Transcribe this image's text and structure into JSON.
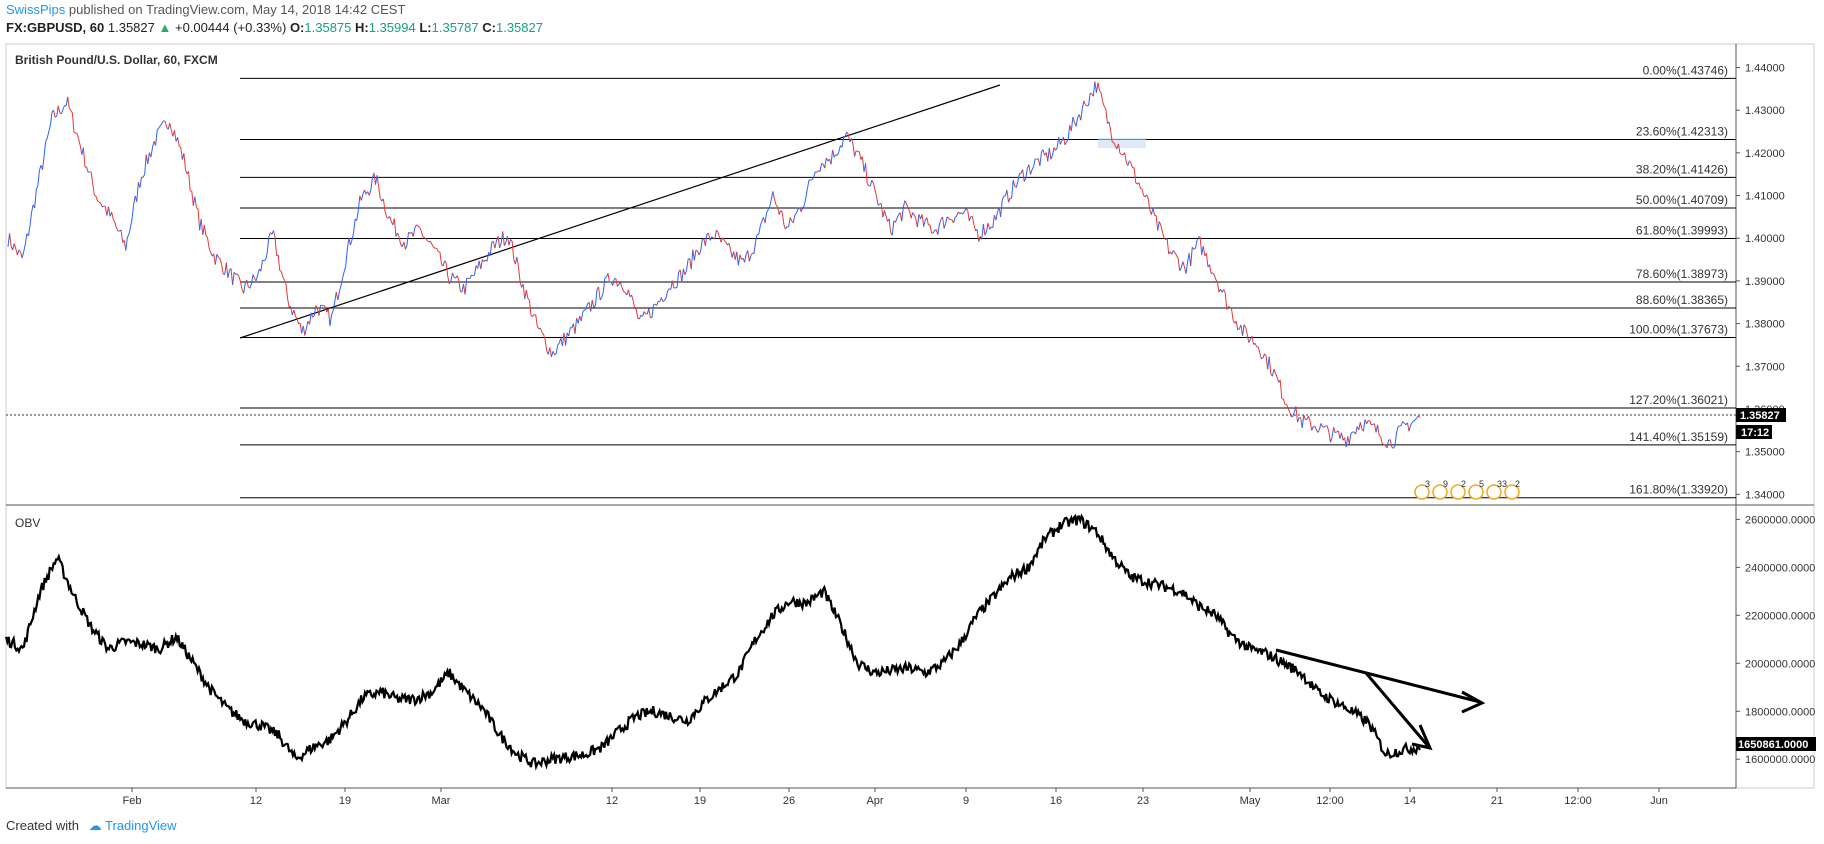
{
  "header": {
    "author": "SwissPips",
    "published_text": "published on TradingView.com, May 14, 2018 14:42 CEST",
    "symbol": "FX:GBPUSD, 60",
    "last": "1.35827",
    "change": "+0.00444 (+0.33%)",
    "o_label": "O:",
    "o_value": "1.35875",
    "h_label": "H:",
    "h_value": "1.35994",
    "l_label": "L:",
    "l_value": "1.35787",
    "c_label": "C:",
    "c_value": "1.35827"
  },
  "footer": {
    "created_with": "Created with",
    "brand": "TradingView"
  },
  "colors": {
    "up": "#2962ff",
    "down": "#e53935",
    "line": "#000000",
    "axis": "#555555",
    "price_tag": "#000000"
  },
  "chart_data": [
    {
      "type": "line",
      "title": "British Pound/U.S. Dollar, 60, FXCM",
      "ylim": [
        1.3375,
        1.4455
      ],
      "y_ticks": [
        "1.44000",
        "1.43000",
        "1.42000",
        "1.41000",
        "1.40000",
        "1.39000",
        "1.38000",
        "1.37000",
        "1.36000",
        "1.35000",
        "1.34000"
      ],
      "x_ticks": [
        "Feb",
        "12",
        "19",
        "Mar",
        "12",
        "19",
        "26",
        "Apr",
        "9",
        "16",
        "23",
        "May",
        "12:00",
        "14",
        "21",
        "12:00",
        "Jun"
      ],
      "current_price": "1.35827",
      "countdown": "17:12",
      "series": [
        {
          "values": [
            1.4,
            1.395,
            1.412,
            1.428,
            1.432,
            1.421,
            1.41,
            1.405,
            1.398,
            1.414,
            1.423,
            1.428,
            1.418,
            1.404,
            1.396,
            1.392,
            1.388,
            1.391,
            1.401,
            1.386,
            1.378,
            1.384,
            1.381,
            1.396,
            1.409,
            1.414,
            1.404,
            1.399,
            1.402,
            1.397,
            1.391,
            1.388,
            1.393,
            1.398,
            1.401,
            1.389,
            1.379,
            1.373,
            1.377,
            1.381,
            1.386,
            1.391,
            1.389,
            1.38,
            1.384,
            1.389,
            1.392,
            1.398,
            1.401,
            1.397,
            1.394,
            1.4,
            1.41,
            1.402,
            1.408,
            1.417,
            1.419,
            1.424,
            1.418,
            1.41,
            1.402,
            1.407,
            1.404,
            1.402,
            1.405,
            1.406,
            1.401,
            1.404,
            1.41,
            1.415,
            1.418,
            1.42,
            1.424,
            1.43,
            1.436,
            1.425,
            1.419,
            1.412,
            1.404,
            1.397,
            1.393,
            1.399,
            1.392,
            1.384,
            1.378,
            1.375,
            1.369,
            1.361,
            1.357,
            1.356,
            1.354,
            1.353,
            1.357,
            1.355,
            1.352,
            1.356,
            1.358
          ]
        }
      ],
      "fibonacci": [
        {
          "label": "0.00%(1.43746)",
          "value": 1.43746
        },
        {
          "label": "23.60%(1.42313)",
          "value": 1.42313
        },
        {
          "label": "38.20%(1.41426)",
          "value": 1.41426
        },
        {
          "label": "50.00%(1.40709)",
          "value": 1.40709
        },
        {
          "label": "61.80%(1.39993)",
          "value": 1.39993
        },
        {
          "label": "78.60%(1.38973)",
          "value": 1.38973
        },
        {
          "label": "88.60%(1.38365)",
          "value": 1.38365
        },
        {
          "label": "100.00%(1.37673)",
          "value": 1.37673
        },
        {
          "label": "127.20%(1.36021)",
          "value": 1.36021
        },
        {
          "label": "141.40%(1.35159)",
          "value": 1.35159
        },
        {
          "label": "161.80%(1.33920)",
          "value": 1.3392
        }
      ],
      "event_numbers": [
        "3",
        "9",
        "2",
        "5",
        "33",
        "2"
      ]
    },
    {
      "type": "line",
      "title": "OBV",
      "ylim": [
        1480000,
        2660000
      ],
      "y_ticks": [
        "2600000.0000",
        "2400000.0000",
        "2200000.0000",
        "2000000.0000",
        "1800000.0000",
        "1600000.0000"
      ],
      "current_value": "1650861.0000",
      "series": [
        {
          "values": [
            2100000,
            2060000,
            2300000,
            2440000,
            2280000,
            2150000,
            2060000,
            2090000,
            2080000,
            2060000,
            2110000,
            2000000,
            1890000,
            1810000,
            1760000,
            1740000,
            1700000,
            1600000,
            1650000,
            1680000,
            1760000,
            1860000,
            1880000,
            1850000,
            1850000,
            1880000,
            1960000,
            1880000,
            1810000,
            1700000,
            1620000,
            1580000,
            1600000,
            1610000,
            1620000,
            1650000,
            1720000,
            1780000,
            1800000,
            1780000,
            1760000,
            1840000,
            1900000,
            1960000,
            2100000,
            2200000,
            2260000,
            2250000,
            2300000,
            2160000,
            2000000,
            1960000,
            1970000,
            1980000,
            1960000,
            2000000,
            2080000,
            2200000,
            2280000,
            2360000,
            2400000,
            2520000,
            2580000,
            2600000,
            2550000,
            2440000,
            2360000,
            2340000,
            2320000,
            2300000,
            2240000,
            2200000,
            2110000,
            2060000,
            2040000,
            2000000,
            1960000,
            1880000,
            1840000,
            1800000,
            1750000,
            1620000,
            1640000,
            1650000
          ]
        }
      ]
    }
  ]
}
